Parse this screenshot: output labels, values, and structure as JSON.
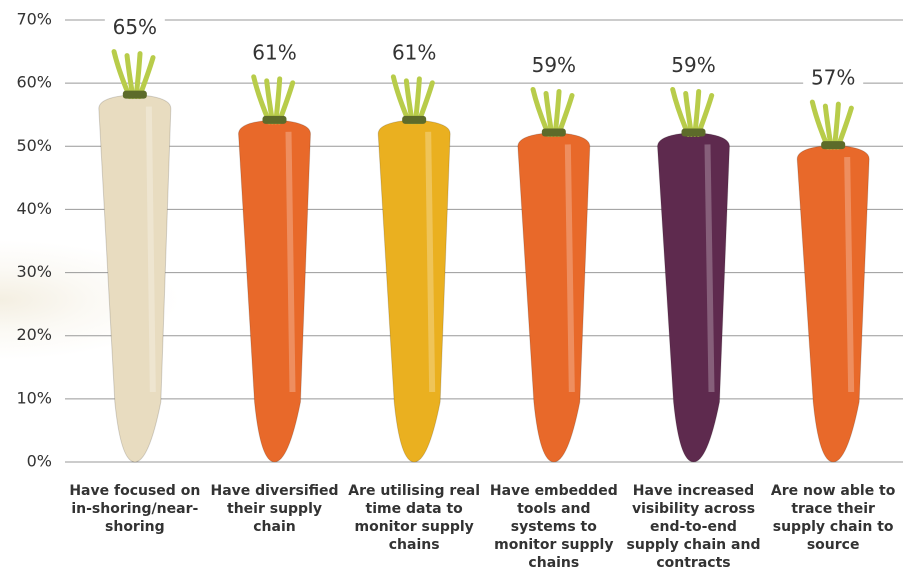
{
  "chart_data": {
    "type": "bar",
    "categories": [
      "Have focused on in-shoring/near-shoring",
      "Have diversified their supply chain",
      "Are utilising real time data to monitor supply chains",
      "Have embedded tools and systems to monitor supply chains",
      "Have increased visibility across end-to-end supply chain and contracts",
      "Are now able to trace their supply chain to source"
    ],
    "values": [
      65,
      61,
      61,
      59,
      59,
      57
    ],
    "value_labels": [
      "65%",
      "61%",
      "61%",
      "59%",
      "59%",
      "57%"
    ],
    "colors": [
      "#e8dcc0",
      "#e8692a",
      "#eab020",
      "#e8692a",
      "#5e2a4e",
      "#e8692a"
    ],
    "label_color": "#1a9a8a",
    "ylim": [
      0,
      70
    ],
    "yticks": [
      {
        "value": 0,
        "label": "0%"
      },
      {
        "value": 10,
        "label": "10%"
      },
      {
        "value": 20,
        "label": "20%"
      },
      {
        "value": 30,
        "label": "30%"
      },
      {
        "value": 40,
        "label": "40%"
      },
      {
        "value": 50,
        "label": "50%"
      },
      {
        "value": 60,
        "label": "60%"
      },
      {
        "value": 70,
        "label": "70%"
      }
    ],
    "grid": true
  }
}
